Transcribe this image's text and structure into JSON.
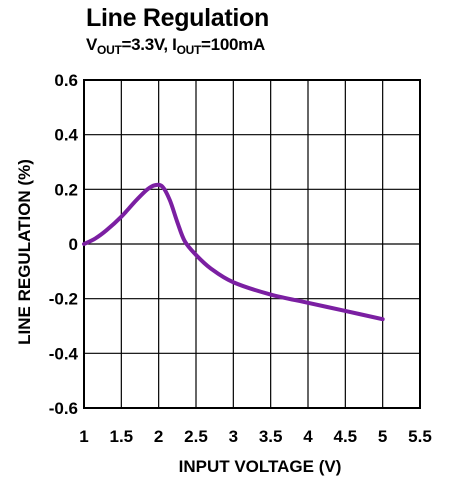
{
  "chart_data": {
    "type": "line",
    "title": "Line Regulation",
    "subtitle": {
      "v_main": "V",
      "v_sub": "OUT",
      "v_value": "=3.3V, ",
      "i_main": "I",
      "i_sub": "OUT",
      "i_value": "=100mA"
    },
    "xlabel": "INPUT VOLTAGE (V)",
    "ylabel": "LINE REGULATION (%)",
    "xlim": [
      1,
      5.5
    ],
    "ylim": [
      -0.6,
      0.6
    ],
    "xticks": [
      "1",
      "1.5",
      "2",
      "2.5",
      "3",
      "3.5",
      "4",
      "4.5",
      "5",
      "5.5"
    ],
    "yticks": [
      "0.6",
      "0.4",
      "0.2",
      "0",
      "-0.2",
      "-0.4",
      "-0.6"
    ],
    "grid": true,
    "color": "#7b1fa2",
    "series": [
      {
        "x": [
          1.0,
          1.15,
          1.3,
          1.5,
          1.7,
          1.85,
          1.95,
          2.05,
          2.15,
          2.25,
          2.35,
          2.5,
          2.7,
          3.0,
          3.5,
          4.0,
          4.5,
          5.0
        ],
        "y": [
          0.0,
          0.02,
          0.05,
          0.1,
          0.16,
          0.2,
          0.215,
          0.21,
          0.16,
          0.08,
          0.01,
          -0.04,
          -0.09,
          -0.14,
          -0.185,
          -0.215,
          -0.245,
          -0.275
        ]
      }
    ]
  }
}
